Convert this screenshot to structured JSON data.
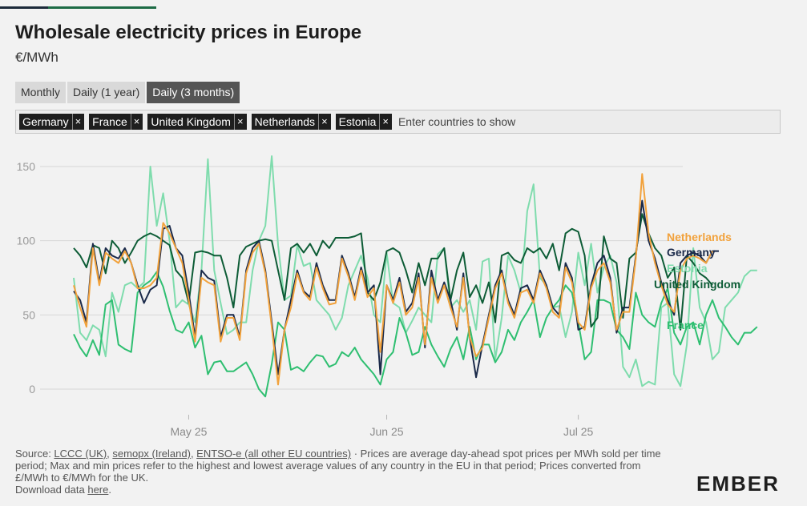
{
  "header": {
    "title": "Wholesale electricity prices in Europe",
    "subtitle": "€/MWh"
  },
  "tabs": [
    {
      "label": "Monthly",
      "active": false
    },
    {
      "label": "Daily (1 year)",
      "active": false
    },
    {
      "label": "Daily (3 months)",
      "active": true
    }
  ],
  "picker": {
    "chips": [
      "Germany",
      "France",
      "United Kingdom",
      "Netherlands",
      "Estonia"
    ],
    "chip_remove_glyph": "×",
    "placeholder": "Enter countries to show"
  },
  "chart_data": {
    "type": "line",
    "ylabel": "",
    "xlabel": "",
    "ylim": [
      0,
      160
    ],
    "y_ticks": [
      0,
      50,
      100,
      150
    ],
    "grid": true,
    "x_start_day": "2025-04-13",
    "x_ticks": [
      {
        "label": "May 25",
        "date": "2025-05-01"
      },
      {
        "label": "Jun 25",
        "date": "2025-06-01"
      },
      {
        "label": "Jul 25",
        "date": "2025-07-01"
      }
    ],
    "series": [
      {
        "name": "Estonia",
        "color": "#7fdcad",
        "values": [
          75,
          38,
          33,
          43,
          40,
          22,
          65,
          52,
          70,
          72,
          68,
          72,
          150,
          110,
          132,
          100,
          55,
          60,
          57,
          45,
          80,
          155,
          80,
          58,
          37,
          40,
          45,
          45,
          80,
          100,
          110,
          157,
          97,
          60,
          63,
          97,
          83,
          85,
          60,
          55,
          50,
          40,
          48,
          70,
          80,
          90,
          75,
          50,
          45,
          92,
          58,
          55,
          38,
          46,
          55,
          50,
          45,
          91,
          95,
          55,
          60,
          52,
          60,
          40,
          86,
          88,
          20,
          48,
          90,
          80,
          65,
          120,
          138,
          75,
          70,
          55,
          56,
          35,
          52,
          92,
          70,
          98,
          65,
          82,
          90,
          72,
          15,
          8,
          20,
          2,
          5,
          3,
          55,
          58,
          10,
          2,
          30,
          95,
          55,
          45,
          20,
          25,
          55,
          60,
          65,
          76,
          80,
          80
        ]
      },
      {
        "name": "France",
        "color": "#2fbf71",
        "values": [
          37,
          28,
          22,
          33,
          23,
          57,
          60,
          30,
          27,
          25,
          65,
          70,
          73,
          79,
          69,
          53,
          40,
          38,
          45,
          28,
          36,
          10,
          18,
          19,
          12,
          12,
          15,
          18,
          10,
          0,
          -5,
          17,
          45,
          40,
          13,
          15,
          12,
          18,
          23,
          22,
          15,
          17,
          25,
          22,
          28,
          20,
          15,
          10,
          3,
          20,
          25,
          48,
          38,
          23,
          25,
          42,
          30,
          22,
          15,
          27,
          35,
          20,
          42,
          20,
          30,
          30,
          18,
          25,
          40,
          33,
          45,
          52,
          60,
          35,
          48,
          55,
          60,
          70,
          65,
          45,
          20,
          25,
          60,
          60,
          58,
          40,
          35,
          27,
          65,
          50,
          45,
          42,
          58,
          68,
          38,
          30,
          42,
          45,
          30,
          50,
          60,
          48,
          42,
          35,
          30,
          38,
          38,
          42
        ]
      },
      {
        "name": "United Kingdom",
        "color": "#0d5c36",
        "values": [
          95,
          90,
          82,
          97,
          95,
          78,
          100,
          95,
          85,
          92,
          100,
          103,
          105,
          103,
          100,
          97,
          80,
          75,
          58,
          92,
          93,
          92,
          90,
          90,
          75,
          55,
          90,
          96,
          98,
          100,
          101,
          100,
          80,
          60,
          95,
          98,
          92,
          98,
          90,
          100,
          95,
          102,
          102,
          102,
          103,
          105,
          65,
          60,
          72,
          93,
          95,
          92,
          80,
          65,
          85,
          70,
          88,
          88,
          95,
          60,
          80,
          92,
          62,
          70,
          58,
          72,
          45,
          90,
          92,
          87,
          85,
          95,
          92,
          95,
          88,
          98,
          80,
          105,
          108,
          106,
          90,
          42,
          48,
          103,
          88,
          85,
          48,
          88,
          92,
          118,
          105,
          95,
          90,
          75,
          82,
          40,
          90,
          85,
          78,
          75,
          70
        ]
      },
      {
        "name": "Germany",
        "color": "#1b2a4a",
        "values": [
          66,
          60,
          45,
          98,
          72,
          95,
          90,
          88,
          95,
          85,
          70,
          58,
          67,
          70,
          108,
          110,
          95,
          90,
          65,
          35,
          80,
          75,
          73,
          35,
          50,
          50,
          35,
          80,
          95,
          100,
          80,
          45,
          10,
          40,
          60,
          80,
          66,
          62,
          85,
          70,
          60,
          60,
          90,
          78,
          62,
          82,
          65,
          70,
          10,
          70,
          60,
          75,
          52,
          58,
          78,
          28,
          80,
          60,
          72,
          60,
          40,
          78,
          35,
          8,
          30,
          50,
          70,
          80,
          60,
          50,
          68,
          70,
          60,
          80,
          70,
          55,
          50,
          85,
          75,
          40,
          42,
          70,
          85,
          90,
          75,
          38,
          55,
          55,
          90,
          127,
          100,
          88,
          72,
          60,
          50,
          85,
          90,
          92,
          90,
          85,
          93,
          93
        ]
      },
      {
        "name": "Netherlands",
        "color": "#f2a23c",
        "values": [
          70,
          55,
          42,
          95,
          70,
          92,
          88,
          85,
          93,
          85,
          68,
          68,
          70,
          75,
          112,
          105,
          95,
          85,
          60,
          32,
          75,
          72,
          70,
          32,
          48,
          48,
          33,
          78,
          92,
          98,
          78,
          42,
          3,
          40,
          55,
          78,
          65,
          60,
          82,
          68,
          57,
          58,
          88,
          76,
          60,
          80,
          62,
          68,
          25,
          70,
          58,
          72,
          50,
          55,
          75,
          30,
          75,
          58,
          70,
          55,
          42,
          75,
          35,
          22,
          28,
          48,
          68,
          78,
          58,
          48,
          65,
          67,
          58,
          78,
          68,
          52,
          48,
          82,
          72,
          45,
          40,
          68,
          80,
          85,
          72,
          40,
          52,
          52,
          88,
          145,
          105,
          85,
          70,
          57,
          52,
          80,
          88,
          90,
          88,
          85,
          93
        ]
      }
    ]
  },
  "end_labels": [
    {
      "series": "Netherlands",
      "text": "Netherlands",
      "color": "#f2a23c"
    },
    {
      "series": "Germany",
      "text": "Germany",
      "color": "#1b2a4a"
    },
    {
      "series": "Estonia",
      "text": "Estonia",
      "color": "#7fdcad"
    },
    {
      "series": "United Kingdom",
      "text": "United Kingdom",
      "color": "#0d5c36"
    },
    {
      "series": "France",
      "text": "France",
      "color": "#2fbf71"
    }
  ],
  "footer": {
    "prefix": "Source: ",
    "link1": "LCCC (UK)",
    "sep1": ", ",
    "link2": "semopx (Ireland)",
    "sep2": ", ",
    "link3": "ENTSO-e (all other EU countries)",
    "text": " · Prices are average day-ahead spot prices per MWh sold per time period; Max and min prices refer to the highest and lowest average values of any country in the EU in that period; Prices converted from £/MWh to €/MWh for the UK.",
    "download_prefix": "Download data ",
    "download_link": "here",
    "download_suffix": "."
  },
  "logo": "EMBER"
}
